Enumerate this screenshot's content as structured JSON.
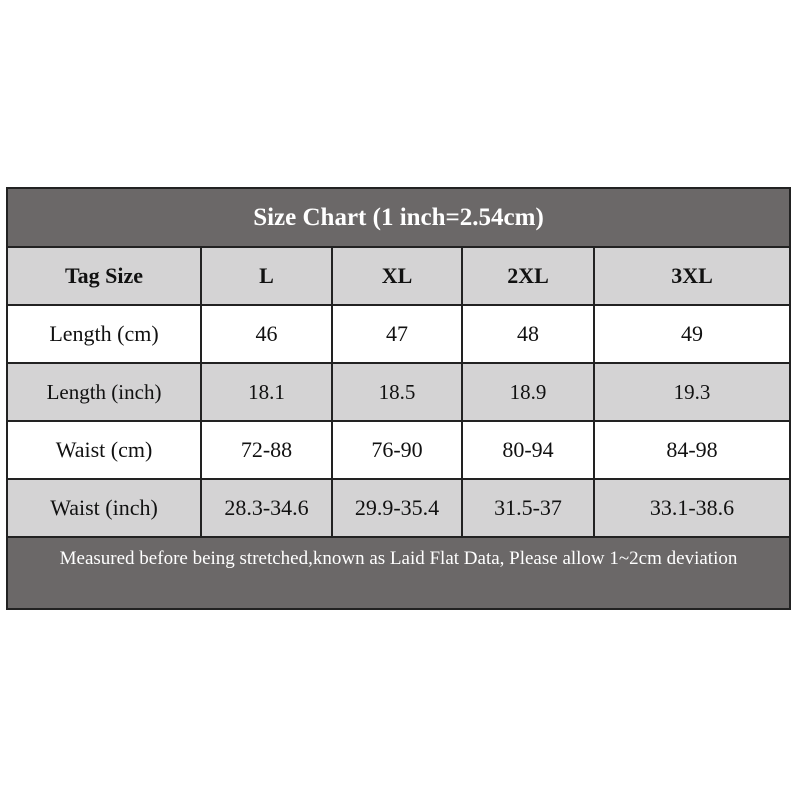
{
  "title": "Size Chart (1 inch=2.54cm)",
  "headers": [
    "Tag Size",
    "L",
    "XL",
    "2XL",
    "3XL"
  ],
  "rows": [
    {
      "label": "Length (cm)",
      "values": [
        "46",
        "47",
        "48",
        "49"
      ]
    },
    {
      "label": "Length (inch)",
      "values": [
        "18.1",
        "18.5",
        "18.9",
        "19.3"
      ]
    },
    {
      "label": "Waist (cm)",
      "values": [
        "72-88",
        "76-90",
        "80-94",
        "84-98"
      ]
    },
    {
      "label": "Waist (inch)",
      "values": [
        "28.3-34.6",
        "29.9-35.4",
        "31.5-37",
        "33.1-38.6"
      ]
    }
  ],
  "footer": "Measured before being stretched,known as Laid Flat Data, Please allow 1~2cm deviation",
  "colors": {
    "dark": "#6b6868",
    "light": "#d4d3d4",
    "border": "#222222"
  }
}
